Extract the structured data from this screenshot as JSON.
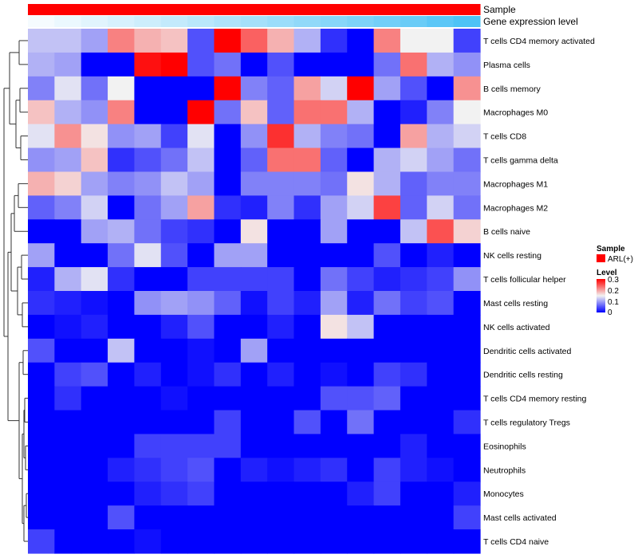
{
  "chart_data": {
    "type": "heatmap",
    "title": "",
    "annotation_tracks": [
      {
        "label": "Sample",
        "colors": [
          "#ff0000",
          "#ff0000",
          "#ff0000",
          "#ff0000",
          "#ff0000",
          "#ff0000",
          "#ff0000",
          "#ff0000",
          "#ff0000",
          "#ff0000",
          "#ff0000",
          "#ff0000",
          "#ff0000",
          "#ff0000",
          "#ff0000",
          "#ff0000",
          "#ff0000"
        ]
      },
      {
        "label": "Gene expression level",
        "values": [
          0.0,
          0.06,
          0.12,
          0.18,
          0.24,
          0.3,
          0.36,
          0.42,
          0.48,
          0.54,
          0.6,
          0.66,
          0.72,
          0.78,
          0.84,
          0.92,
          1.0
        ]
      }
    ],
    "rows": [
      "T cells CD4 memory activated",
      "Plasma cells",
      "B cells memory",
      "Macrophages M0",
      "T cells CD8",
      "T cells gamma delta",
      "Macrophages M1",
      "Macrophages M2",
      "B cells naive",
      "NK cells resting",
      "T cells follicular helper",
      "Mast cells resting",
      "NK cells activated",
      "Dendritic cells activated",
      "Dendritic cells resting",
      "T cells CD4 memory resting",
      "T cells regulatory  Tregs",
      "Eosinophils",
      "Neutrophils",
      "Monocytes",
      "Mast cells activated",
      "T cells CD4 naive"
    ],
    "values": [
      [
        0.12,
        0.12,
        0.1,
        0.22,
        0.19,
        0.18,
        0.05,
        0.3,
        0.24,
        0.19,
        0.11,
        0.03,
        0.0,
        0.22,
        0.15,
        0.15,
        0.04
      ],
      [
        0.11,
        0.1,
        0.0,
        0.0,
        0.29,
        0.3,
        0.05,
        0.07,
        0.0,
        0.05,
        0.0,
        0.0,
        0.0,
        0.07,
        0.23,
        0.11,
        0.09
      ],
      [
        0.08,
        0.14,
        0.07,
        0.15,
        0.0,
        0.0,
        0.0,
        0.3,
        0.08,
        0.06,
        0.2,
        0.13,
        0.3,
        0.1,
        0.05,
        0.0,
        0.21
      ],
      [
        0.18,
        0.11,
        0.09,
        0.22,
        0.0,
        0.0,
        0.3,
        0.07,
        0.18,
        0.06,
        0.23,
        0.23,
        0.11,
        0.0,
        0.02,
        0.08,
        0.15
      ],
      [
        0.14,
        0.21,
        0.16,
        0.09,
        0.1,
        0.04,
        0.14,
        0.0,
        0.09,
        0.27,
        0.11,
        0.08,
        0.07,
        0.0,
        0.2,
        0.11,
        0.13
      ],
      [
        0.09,
        0.1,
        0.18,
        0.03,
        0.05,
        0.07,
        0.12,
        0.0,
        0.06,
        0.23,
        0.23,
        0.06,
        0.0,
        0.11,
        0.13,
        0.1,
        0.07
      ],
      [
        0.19,
        0.17,
        0.1,
        0.08,
        0.09,
        0.12,
        0.1,
        0.0,
        0.08,
        0.08,
        0.08,
        0.07,
        0.16,
        0.11,
        0.06,
        0.08,
        0.08
      ],
      [
        0.06,
        0.08,
        0.13,
        0.0,
        0.07,
        0.1,
        0.2,
        0.03,
        0.02,
        0.08,
        0.03,
        0.1,
        0.13,
        0.26,
        0.06,
        0.13,
        0.07
      ],
      [
        0.0,
        0.0,
        0.1,
        0.11,
        0.07,
        0.04,
        0.03,
        0.0,
        0.16,
        0.0,
        0.0,
        0.1,
        0.0,
        0.0,
        0.12,
        0.25,
        0.17
      ],
      [
        0.1,
        0.0,
        0.0,
        0.07,
        0.14,
        0.05,
        0.0,
        0.1,
        0.1,
        0.0,
        0.0,
        0.0,
        0.0,
        0.05,
        0.0,
        0.02,
        0.0
      ],
      [
        0.02,
        0.11,
        0.14,
        0.03,
        0.0,
        0.0,
        0.04,
        0.04,
        0.04,
        0.04,
        0.0,
        0.07,
        0.04,
        0.02,
        0.03,
        0.04,
        0.09
      ],
      [
        0.03,
        0.02,
        0.01,
        0.0,
        0.09,
        0.1,
        0.09,
        0.06,
        0.01,
        0.04,
        0.02,
        0.1,
        0.02,
        0.07,
        0.04,
        0.05,
        0.0
      ],
      [
        0.0,
        0.01,
        0.02,
        0.0,
        0.0,
        0.02,
        0.05,
        0.0,
        0.0,
        0.02,
        0.0,
        0.16,
        0.12,
        0.0,
        0.0,
        0.0,
        0.0
      ],
      [
        0.05,
        0.0,
        0.0,
        0.12,
        0.0,
        0.0,
        0.01,
        0.0,
        0.1,
        0.0,
        0.0,
        0.0,
        0.0,
        0.0,
        0.0,
        0.0,
        0.0
      ],
      [
        0.0,
        0.04,
        0.05,
        0.0,
        0.02,
        0.0,
        0.01,
        0.03,
        0.0,
        0.02,
        0.0,
        0.01,
        0.0,
        0.04,
        0.03,
        0.0,
        0.0
      ],
      [
        0.0,
        0.03,
        0.0,
        0.0,
        0.0,
        0.01,
        0.0,
        0.0,
        0.0,
        0.0,
        0.0,
        0.05,
        0.05,
        0.06,
        0.0,
        0.0,
        0.0
      ],
      [
        0.0,
        0.0,
        0.0,
        0.0,
        0.0,
        0.0,
        0.0,
        0.04,
        0.0,
        0.0,
        0.05,
        0.0,
        0.07,
        0.0,
        0.0,
        0.0,
        0.03
      ],
      [
        0.0,
        0.0,
        0.0,
        0.0,
        0.04,
        0.04,
        0.04,
        0.04,
        0.0,
        0.0,
        0.0,
        0.0,
        0.0,
        0.0,
        0.02,
        0.0,
        0.0
      ],
      [
        0.0,
        0.0,
        0.0,
        0.02,
        0.03,
        0.04,
        0.05,
        0.0,
        0.02,
        0.01,
        0.02,
        0.03,
        0.0,
        0.04,
        0.02,
        0.01,
        0.0
      ],
      [
        0.0,
        0.0,
        0.0,
        0.0,
        0.02,
        0.03,
        0.04,
        0.0,
        0.0,
        0.0,
        0.0,
        0.0,
        0.02,
        0.04,
        0.0,
        0.0,
        0.02
      ],
      [
        0.0,
        0.0,
        0.0,
        0.05,
        0.0,
        0.0,
        0.0,
        0.0,
        0.0,
        0.0,
        0.0,
        0.0,
        0.0,
        0.0,
        0.0,
        0.0,
        0.04
      ],
      [
        0.04,
        0.0,
        0.0,
        0.0,
        0.01,
        0.0,
        0.0,
        0.0,
        0.0,
        0.0,
        0.0,
        0.0,
        0.0,
        0.0,
        0.0,
        0.0,
        0.0
      ]
    ],
    "color_scale": {
      "min": 0,
      "mid": 0.15,
      "max": 0.3,
      "low_color": "#0000ff",
      "mid_color": "#f2f2f2",
      "high_color": "#ff0000"
    },
    "legend": {
      "sample_title": "Sample",
      "sample_entry": "ARL(+)",
      "sample_color": "#ff0000",
      "level_title": "Level",
      "level_ticks": [
        "0.3",
        "0.2",
        "0.1",
        "0"
      ]
    },
    "dendrogram": "row clustering (left)",
    "xlabel": "",
    "ylabel": ""
  }
}
